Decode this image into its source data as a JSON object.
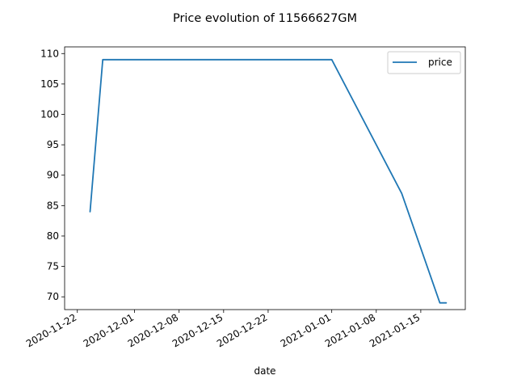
{
  "chart_data": {
    "type": "line",
    "title": "Price evolution of 11566627GM",
    "xlabel": "date",
    "ylabel": "",
    "x_ticks": [
      "2020-11-22",
      "2020-12-01",
      "2020-12-08",
      "2020-12-15",
      "2020-12-22",
      "2021-01-01",
      "2021-01-08",
      "2021-01-15"
    ],
    "y_ticks": [
      70,
      75,
      80,
      85,
      90,
      95,
      100,
      105,
      110
    ],
    "xlim": [
      "2020-11-20",
      "2021-01-22"
    ],
    "ylim": [
      67.9,
      111.1
    ],
    "legend_position": "top-right",
    "grid": false,
    "series": [
      {
        "name": "price",
        "color": "#1f77b4",
        "points": [
          {
            "x": "2020-11-24",
            "y": 84
          },
          {
            "x": "2020-11-26",
            "y": 109
          },
          {
            "x": "2021-01-01",
            "y": 109
          },
          {
            "x": "2021-01-12",
            "y": 87
          },
          {
            "x": "2021-01-18",
            "y": 69
          },
          {
            "x": "2021-01-19",
            "y": 69
          }
        ]
      }
    ]
  }
}
